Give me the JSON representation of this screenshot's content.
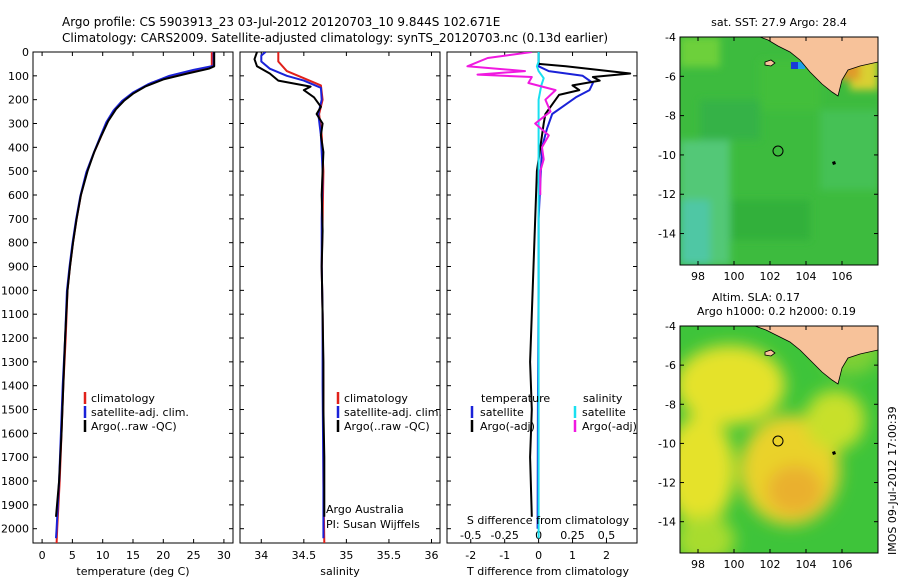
{
  "header": {
    "line1": "Argo profile: CS 5903913_23 03-Jul-2012 20120703_10 9.844S 102.671E",
    "line2": "Climatology: CARS2009. Satellite-adjusted climatology: synTS_20120703.nc (0.13d earlier)"
  },
  "stamp": "IMOS 09-Jul-2012 17:00:39",
  "colors": {
    "red": "#e0201a",
    "blue": "#1a22d8",
    "black": "#000000",
    "cyan": "#19e0f0",
    "magenta": "#f019e0",
    "land": "#f7c29a",
    "ocean": "#3ec43a",
    "warm": "#e9e227"
  },
  "chart_data": [
    {
      "type": "line",
      "xlabel": "temperature (deg C)",
      "ylabel": "",
      "xlim": [
        -1.5,
        31.5
      ],
      "ylim": [
        2060,
        0
      ],
      "xticks": [
        "0",
        "5",
        "10",
        "15",
        "20",
        "25",
        "30"
      ],
      "yticks": [
        "0",
        "100",
        "200",
        "300",
        "400",
        "500",
        "600",
        "700",
        "800",
        "900",
        "1000",
        "1100",
        "1200",
        "1300",
        "1400",
        "1500",
        "1600",
        "1700",
        "1800",
        "1900",
        "2000"
      ],
      "legend": [
        "climatology",
        "satellite-adj. clim.",
        "Argo(..raw -QC)"
      ],
      "series": [
        {
          "name": "climatology",
          "color": "red",
          "points": [
            [
              28,
              0
            ],
            [
              28,
              60
            ],
            [
              26,
              75
            ],
            [
              22,
              95
            ],
            [
              18,
              130
            ],
            [
              15.5,
              165
            ],
            [
              13.5,
              200
            ],
            [
              12,
              240
            ],
            [
              10.8,
              290
            ],
            [
              9.8,
              350
            ],
            [
              8.6,
              420
            ],
            [
              7.4,
              500
            ],
            [
              6.4,
              600
            ],
            [
              5.7,
              700
            ],
            [
              5.1,
              800
            ],
            [
              4.6,
              900
            ],
            [
              4.2,
              1000
            ],
            [
              3.9,
              1200
            ],
            [
              3.5,
              1400
            ],
            [
              3.2,
              1600
            ],
            [
              2.9,
              1800
            ],
            [
              2.5,
              2000
            ],
            [
              2.4,
              2060
            ]
          ]
        },
        {
          "name": "satellite-adj. clim.",
          "color": "blue",
          "points": [
            [
              28.3,
              0
            ],
            [
              28.3,
              58
            ],
            [
              25,
              75
            ],
            [
              21,
              100
            ],
            [
              17.5,
              135
            ],
            [
              15,
              170
            ],
            [
              13.2,
              205
            ],
            [
              11.8,
              245
            ],
            [
              10.6,
              295
            ],
            [
              9.6,
              355
            ],
            [
              8.5,
              425
            ],
            [
              7.3,
              505
            ],
            [
              6.3,
              605
            ],
            [
              5.6,
              705
            ],
            [
              5,
              805
            ],
            [
              4.5,
              905
            ],
            [
              4.1,
              1005
            ],
            [
              3.8,
              1200
            ],
            [
              3.4,
              1400
            ],
            [
              3.1,
              1600
            ],
            [
              2.8,
              1800
            ],
            [
              2.4,
              2000
            ],
            [
              2.3,
              2040
            ]
          ]
        },
        {
          "name": "Argo(..raw -QC)",
          "color": "black",
          "points": [
            [
              28.4,
              0
            ],
            [
              28.4,
              60
            ],
            [
              27.5,
              70
            ],
            [
              24,
              90
            ],
            [
              20,
              115
            ],
            [
              17,
              145
            ],
            [
              15,
              175
            ],
            [
              13.5,
              205
            ],
            [
              12.2,
              240
            ],
            [
              10.9,
              290
            ],
            [
              9.8,
              350
            ],
            [
              8.6,
              420
            ],
            [
              7.5,
              500
            ],
            [
              6.4,
              600
            ],
            [
              5.7,
              700
            ],
            [
              5.1,
              800
            ],
            [
              4.6,
              900
            ],
            [
              4.2,
              1000
            ],
            [
              3.8,
              1200
            ],
            [
              3.5,
              1400
            ],
            [
              3.2,
              1600
            ],
            [
              2.8,
              1800
            ],
            [
              2.3,
              1950
            ]
          ]
        }
      ]
    },
    {
      "type": "line",
      "xlabel": "salinity",
      "xlim": [
        33.75,
        36.1
      ],
      "ylim": [
        2060,
        0
      ],
      "xticks": [
        "34",
        "34.5",
        "35",
        "35.5",
        "36"
      ],
      "legend": [
        "climatology",
        "satellite-adj. clim.",
        "Argo(..raw -QC)"
      ],
      "annotations": [
        "Argo Australia",
        "PI: Susan Wijffels"
      ],
      "series": [
        {
          "name": "climatology",
          "color": "red",
          "points": [
            [
              34.2,
              0
            ],
            [
              34.2,
              40
            ],
            [
              34.3,
              80
            ],
            [
              34.5,
              110
            ],
            [
              34.7,
              140
            ],
            [
              34.72,
              200
            ],
            [
              34.68,
              260
            ],
            [
              34.71,
              350
            ],
            [
              34.73,
              500
            ],
            [
              34.72,
              700
            ],
            [
              34.71,
              900
            ],
            [
              34.72,
              1100
            ],
            [
              34.73,
              1400
            ],
            [
              34.73,
              1800
            ],
            [
              34.74,
              2060
            ]
          ]
        },
        {
          "name": "satellite-adj. clim.",
          "color": "blue",
          "points": [
            [
              34.05,
              0
            ],
            [
              34.0,
              15
            ],
            [
              34.0,
              40
            ],
            [
              34.1,
              70
            ],
            [
              34.3,
              100
            ],
            [
              34.5,
              120
            ],
            [
              34.7,
              150
            ],
            [
              34.71,
              200
            ],
            [
              34.67,
              260
            ],
            [
              34.7,
              350
            ],
            [
              34.72,
              500
            ],
            [
              34.71,
              700
            ],
            [
              34.71,
              900
            ],
            [
              34.72,
              1100
            ],
            [
              34.72,
              1400
            ],
            [
              34.73,
              1800
            ],
            [
              34.73,
              2040
            ]
          ]
        },
        {
          "name": "Argo(..raw -QC)",
          "color": "black",
          "points": [
            [
              33.95,
              0
            ],
            [
              33.92,
              30
            ],
            [
              33.95,
              60
            ],
            [
              34.1,
              90
            ],
            [
              34.2,
              120
            ],
            [
              34.58,
              145
            ],
            [
              34.5,
              160
            ],
            [
              34.62,
              190
            ],
            [
              34.7,
              230
            ],
            [
              34.65,
              260
            ],
            [
              34.72,
              300
            ],
            [
              34.7,
              350
            ],
            [
              34.73,
              420
            ],
            [
              34.72,
              500
            ],
            [
              34.71,
              600
            ],
            [
              34.72,
              750
            ],
            [
              34.71,
              900
            ],
            [
              34.72,
              1100
            ],
            [
              34.73,
              1300
            ],
            [
              34.73,
              1500
            ],
            [
              34.74,
              1700
            ],
            [
              34.74,
              1950
            ]
          ]
        }
      ]
    },
    {
      "type": "line",
      "xlabel": "T difference from climatology",
      "xlabel_top": "S difference from climatology",
      "xlim": [
        -2.7,
        2.9
      ],
      "ylim": [
        2060,
        0
      ],
      "xticks": [
        "-2",
        "-1",
        "0",
        "1",
        "2"
      ],
      "xticks_top": [
        "-0.5",
        "-0.25",
        "0",
        "0.25",
        "0.5"
      ],
      "legend_titles": [
        "temperature",
        "salinity"
      ],
      "legend": [
        "satellite",
        "Argo(-adj)",
        "satellite",
        "Argo(-adj)"
      ],
      "series": [
        {
          "name": "satellite",
          "color": "blue",
          "points": [
            [
              0,
              0
            ],
            [
              0,
              60
            ],
            [
              0.3,
              80
            ],
            [
              1.3,
              100
            ],
            [
              1.6,
              130
            ],
            [
              1.5,
              160
            ],
            [
              1.1,
              190
            ],
            [
              0.8,
              220
            ],
            [
              0.4,
              260
            ],
            [
              0.25,
              320
            ],
            [
              0.1,
              400
            ],
            [
              0.05,
              550
            ],
            [
              0,
              700
            ],
            [
              0,
              1000
            ],
            [
              -0.02,
              1500
            ],
            [
              -0.03,
              2000
            ]
          ]
        },
        {
          "name": "Argo(-adj)",
          "color": "black",
          "points": [
            [
              0,
              0
            ],
            [
              0,
              50
            ],
            [
              0.8,
              60
            ],
            [
              2.7,
              90
            ],
            [
              1.6,
              105
            ],
            [
              1.8,
              120
            ],
            [
              1.0,
              140
            ],
            [
              1.2,
              160
            ],
            [
              0.6,
              180
            ],
            [
              0.4,
              220
            ],
            [
              0.2,
              260
            ],
            [
              0.15,
              300
            ],
            [
              0.05,
              400
            ],
            [
              -0.05,
              500
            ],
            [
              -0.1,
              700
            ],
            [
              -0.15,
              900
            ],
            [
              -0.2,
              1100
            ],
            [
              -0.25,
              1300
            ],
            [
              -0.2,
              1500
            ],
            [
              -0.25,
              1700
            ],
            [
              -0.2,
              1950
            ]
          ]
        },
        {
          "name": "satellite",
          "color": "cyan",
          "points": [
            [
              0,
              0
            ],
            [
              0,
              40
            ],
            [
              -0.05,
              60
            ],
            [
              0,
              80
            ],
            [
              0.15,
              110
            ],
            [
              0.08,
              140
            ],
            [
              0,
              200
            ],
            [
              0,
              300
            ],
            [
              0,
              500
            ],
            [
              0,
              800
            ],
            [
              0,
              1200
            ],
            [
              0,
              1600
            ],
            [
              0,
              2040
            ]
          ]
        },
        {
          "name": "Argo(-adj)",
          "color": "magenta",
          "points": [
            [
              -0.2,
              0
            ],
            [
              -1.5,
              25
            ],
            [
              -2.1,
              60
            ],
            [
              -0.4,
              80
            ],
            [
              -1.8,
              95
            ],
            [
              -0.2,
              105
            ],
            [
              -0.3,
              130
            ],
            [
              0.5,
              160
            ],
            [
              0.2,
              200
            ],
            [
              0.35,
              250
            ],
            [
              -0.1,
              300
            ],
            [
              0.3,
              350
            ],
            [
              0.1,
              400
            ],
            [
              0.15,
              450
            ],
            [
              0.05,
              500
            ],
            [
              0.05,
              600
            ]
          ]
        }
      ]
    }
  ],
  "maps": [
    {
      "title": "sat. SST: 27.9 Argo: 28.4",
      "xticks": [
        "98",
        "100",
        "102",
        "104",
        "106"
      ],
      "yticks": [
        "-4",
        "-6",
        "-8",
        "-10",
        "-12",
        "-14"
      ],
      "xlim": [
        97,
        108
      ],
      "ylim": [
        -4,
        -15.6
      ],
      "argo_marker": [
        102.67,
        -9.84
      ]
    },
    {
      "title_line1": "Altim. SLA: 0.17",
      "title_line2": "Argo h1000: 0.2 h2000: 0.19",
      "xticks": [
        "98",
        "100",
        "102",
        "104",
        "106"
      ],
      "yticks": [
        "-4",
        "-6",
        "-8",
        "-10",
        "-12",
        "-14"
      ],
      "xlim": [
        97,
        108
      ],
      "ylim": [
        -4,
        -15.6
      ],
      "argo_marker": [
        102.67,
        -9.84
      ]
    }
  ]
}
